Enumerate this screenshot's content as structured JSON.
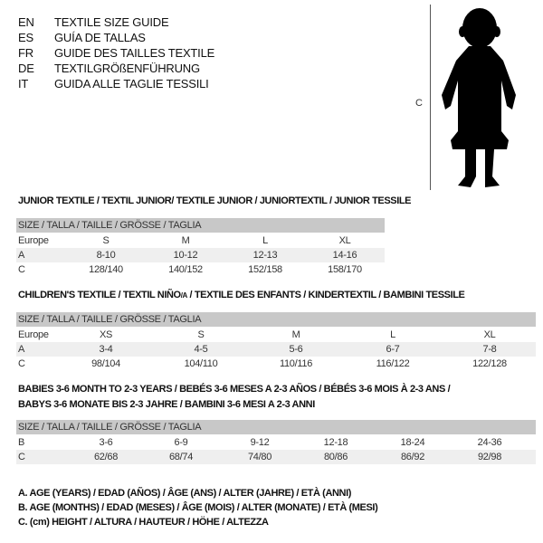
{
  "languages": [
    {
      "code": "EN",
      "text": "TEXTILE SIZE GUIDE"
    },
    {
      "code": "ES",
      "text": "GUÍA DE TALLAS"
    },
    {
      "code": "FR",
      "text": "GUIDE DES TAILLES TEXTILE"
    },
    {
      "code": "DE",
      "text": "TEXTILGRÖßENFÜHRUNG"
    },
    {
      "code": "IT",
      "text": "GUIDA ALLE TAGLIE TESSILI"
    }
  ],
  "figure": {
    "height_label": "C"
  },
  "junior": {
    "title": "JUNIOR TEXTILE / TEXTIL JUNIOR/ TEXTILE JUNIOR / JUNIORTEXTIL / JUNIOR TESSILE",
    "header": "SIZE / TALLA / TAILLE / GRÖSSE / TAGLIA",
    "rows": [
      {
        "label": "Europe",
        "cells": [
          "S",
          "M",
          "L",
          "XL"
        ]
      },
      {
        "label": "A",
        "cells": [
          "8-10",
          "10-12",
          "12-13",
          "14-16"
        ]
      },
      {
        "label": "C",
        "cells": [
          "128/140",
          "140/152",
          "152/158",
          "158/170"
        ]
      }
    ]
  },
  "children": {
    "title": "CHILDREN'S TEXTILE / TEXTIL NIÑO/A / TEXTILE DES ENFANTS / KINDERTEXTIL / BAMBINI TESSILE",
    "header": "SIZE / TALLA / TAILLE / GRÖSSE / TAGLIA",
    "rows": [
      {
        "label": "Europe",
        "cells": [
          "XS",
          "S",
          "M",
          "L",
          "XL"
        ]
      },
      {
        "label": "A",
        "cells": [
          "3-4",
          "4-5",
          "5-6",
          "6-7",
          "7-8"
        ]
      },
      {
        "label": "C",
        "cells": [
          "98/104",
          "104/110",
          "110/116",
          "116/122",
          "122/128"
        ]
      }
    ]
  },
  "babies": {
    "title_line1": "BABIES 3-6 MONTH TO 2-3 YEARS / BEBÉS 3-6 MESES A 2-3 AÑOS / BÉBÉS 3-6 MOIS À 2-3 ANS /",
    "title_line2": "BABYS 3-6 MONATE BIS 2-3 JAHRE / BAMBINI 3-6 MESI A 2-3 ANNI",
    "header": "SIZE / TALLA / TAILLE / GRÖSSE / TAGLIA",
    "rows": [
      {
        "label": "B",
        "cells": [
          "3-6",
          "6-9",
          "9-12",
          "12-18",
          "18-24",
          "24-36"
        ]
      },
      {
        "label": "C",
        "cells": [
          "62/68",
          "68/74",
          "74/80",
          "80/86",
          "86/92",
          "92/98"
        ]
      }
    ]
  },
  "legend": [
    "A. AGE (YEARS) / EDAD (AÑOS) / ÂGE (ANS) / ALTER (JAHRE) / ETÀ (ANNI)",
    "B. AGE (MONTHS) / EDAD (MESES) / ÂGE (MOIS) / ALTER (MONATE) / ETÀ (MESI)",
    "C. (cm) HEIGHT / ALTURA / HAUTEUR / HÖHE / ALTEZZA"
  ]
}
